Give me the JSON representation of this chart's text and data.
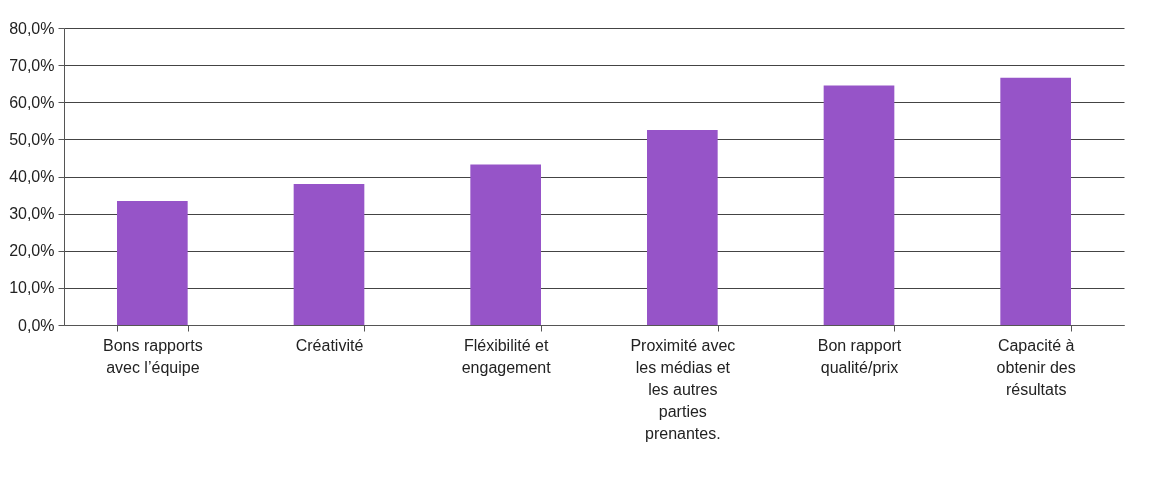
{
  "chart_data": {
    "type": "bar",
    "categories": [
      "Bons rapports avec l’équipe",
      "Créativité",
      "Fléxibilité et engagement",
      "Proximité avec les médias et les autres parties prenantes.",
      "Bon rapport qualité/prix",
      "Capacité à obtenir des résultats"
    ],
    "values": [
      33.4,
      38.0,
      43.2,
      52.5,
      64.5,
      66.6
    ],
    "color": "#9654c8",
    "ylim": [
      0,
      80
    ],
    "yticks": [
      {
        "value": 0,
        "label": "0,0%"
      },
      {
        "value": 10,
        "label": "10,0%"
      },
      {
        "value": 20,
        "label": "20,0%"
      },
      {
        "value": 30,
        "label": "30,0%"
      },
      {
        "value": 40,
        "label": "40,0%"
      },
      {
        "value": 50,
        "label": "50,0%"
      },
      {
        "value": 60,
        "label": "60,0%"
      },
      {
        "value": 70,
        "label": "70,0%"
      },
      {
        "value": 80,
        "label": "80,0%"
      }
    ],
    "grid": "y"
  }
}
